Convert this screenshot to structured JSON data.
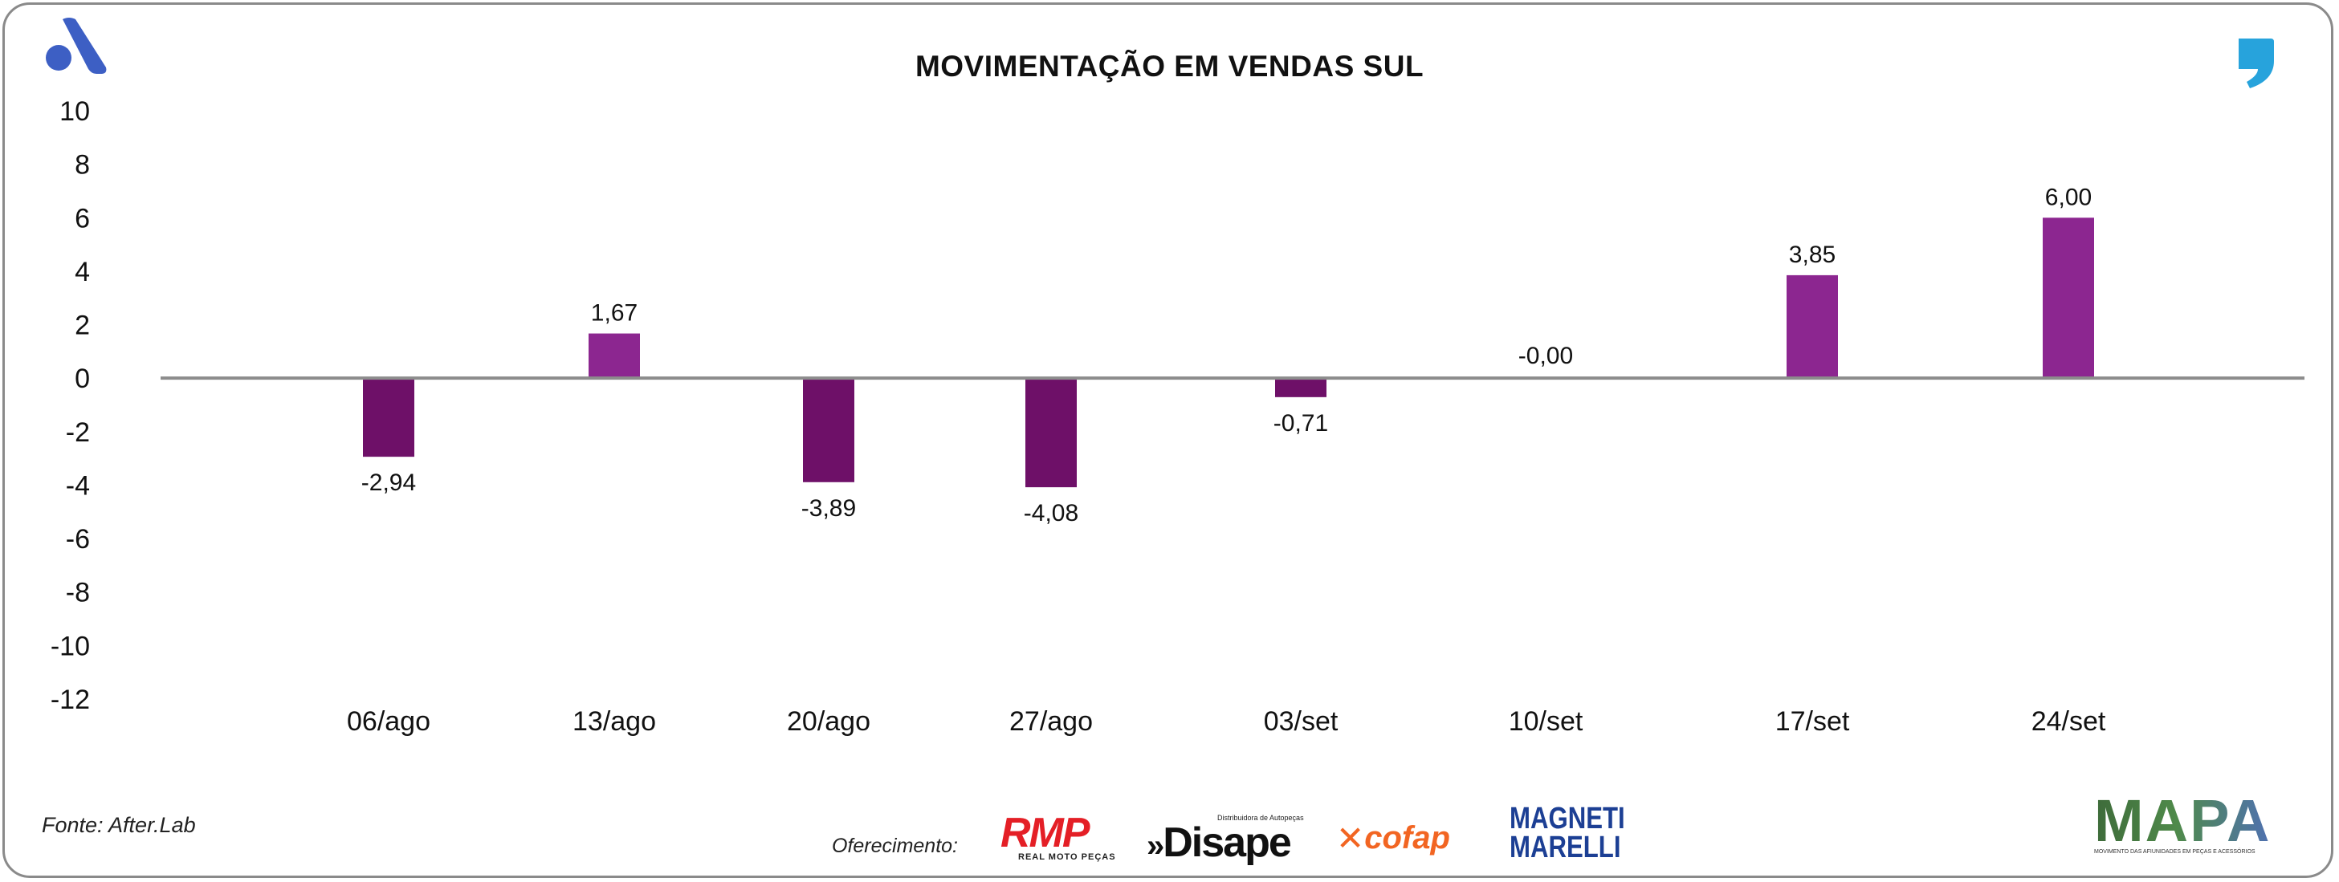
{
  "header": {
    "title": "MOVIMENTAÇÃO EM VENDAS SUL"
  },
  "footer": {
    "source": "Fonte: After.Lab",
    "sponsor_label": "Oferecimento:",
    "sponsors": {
      "rmp": "RMP",
      "rmp_tagline": "REAL MOTO PEÇAS",
      "disape": "Disape",
      "disape_tagline": "Distribuidora de Autopeças",
      "cofap": "cofap",
      "magneti_1": "MAGNETI",
      "magneti_2": "MARELLI",
      "mapa": "MAPA",
      "mapa_tagline": "MOVIMENTO DAS AFIUNIDADES EM PEÇAS E ACESSÓRIOS"
    }
  },
  "colors": {
    "negative_bar": "#6e1068",
    "positive_bar": "#8c2690",
    "zero_line": "#8c8c8c",
    "brand_left": "#3d5fc4",
    "brand_right": "#27a3dc"
  },
  "icons": [
    "after-lab-logo-icon",
    "quote-mark-icon"
  ],
  "chart_data": {
    "type": "bar",
    "title": "MOVIMENTAÇÃO EM VENDAS SUL",
    "categories": [
      "06/ago",
      "13/ago",
      "20/ago",
      "27/ago",
      "03/set",
      "10/set",
      "17/set",
      "24/set"
    ],
    "values": [
      -2.94,
      1.67,
      -3.89,
      -4.08,
      -0.71,
      -0.0,
      3.85,
      6.0
    ],
    "data_labels": [
      "-2,94",
      "1,67",
      "-3,89",
      "-4,08",
      "-0,71",
      "-0,00",
      "3,85",
      "6,00"
    ],
    "y_ticks": [
      10,
      8,
      6,
      4,
      2,
      0,
      -2,
      -4,
      -6,
      -8,
      -10,
      -12
    ],
    "ylim": [
      -12,
      10
    ],
    "xlabel": "",
    "ylabel": "",
    "grid": false,
    "legend": "none"
  }
}
